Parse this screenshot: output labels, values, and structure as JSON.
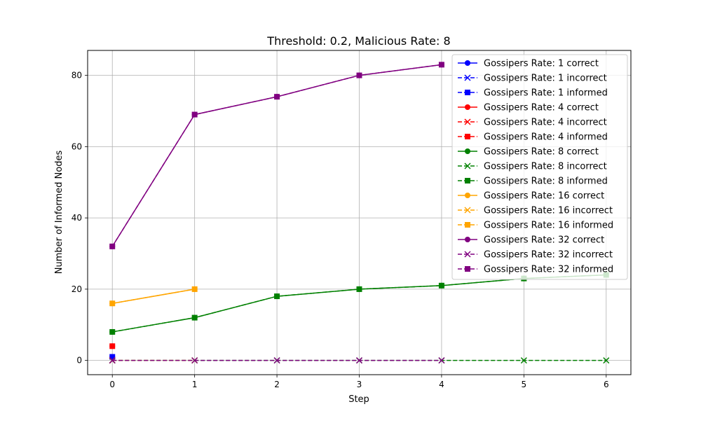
{
  "chart_data": {
    "type": "line",
    "title": "Threshold: 0.2, Malicious Rate: 8",
    "xlabel": "Step",
    "ylabel": "Number of Informed Nodes",
    "xlim": [
      -0.3,
      6.3
    ],
    "ylim": [
      -4,
      87
    ],
    "xticks": [
      0,
      1,
      2,
      3,
      4,
      5,
      6
    ],
    "yticks": [
      0,
      20,
      40,
      60,
      80
    ],
    "grid": true,
    "legend_position": "upper right",
    "series": [
      {
        "name": "Gossipers Rate: 1 correct",
        "color": "#0000ff",
        "linestyle": "solid",
        "marker": "circle",
        "x": [
          0
        ],
        "y": [
          1
        ]
      },
      {
        "name": "Gossipers Rate: 1 incorrect",
        "color": "#0000ff",
        "linestyle": "dashed",
        "marker": "x",
        "x": [
          0
        ],
        "y": [
          0
        ]
      },
      {
        "name": "Gossipers Rate: 1 informed",
        "color": "#0000ff",
        "linestyle": "dashed",
        "marker": "square",
        "x": [
          0
        ],
        "y": [
          1
        ]
      },
      {
        "name": "Gossipers Rate: 4 correct",
        "color": "#ff0000",
        "linestyle": "solid",
        "marker": "circle",
        "x": [
          0
        ],
        "y": [
          4
        ]
      },
      {
        "name": "Gossipers Rate: 4 incorrect",
        "color": "#ff0000",
        "linestyle": "dashed",
        "marker": "x",
        "x": [
          0
        ],
        "y": [
          0
        ]
      },
      {
        "name": "Gossipers Rate: 4 informed",
        "color": "#ff0000",
        "linestyle": "dashed",
        "marker": "square",
        "x": [
          0
        ],
        "y": [
          4
        ]
      },
      {
        "name": "Gossipers Rate: 8 correct",
        "color": "#008000",
        "linestyle": "solid",
        "marker": "circle",
        "x": [
          0,
          1,
          2,
          3,
          4,
          5,
          6
        ],
        "y": [
          8,
          12,
          18,
          20,
          21,
          23,
          24
        ]
      },
      {
        "name": "Gossipers Rate: 8 incorrect",
        "color": "#008000",
        "linestyle": "dashed",
        "marker": "x",
        "x": [
          0,
          1,
          2,
          3,
          4,
          5,
          6
        ],
        "y": [
          0,
          0,
          0,
          0,
          0,
          0,
          0
        ]
      },
      {
        "name": "Gossipers Rate: 8 informed",
        "color": "#008000",
        "linestyle": "dashed",
        "marker": "square",
        "x": [
          0,
          1,
          2,
          3,
          4,
          5,
          6
        ],
        "y": [
          8,
          12,
          18,
          20,
          21,
          23,
          24
        ]
      },
      {
        "name": "Gossipers Rate: 16 correct",
        "color": "#ffa500",
        "linestyle": "solid",
        "marker": "circle",
        "x": [
          0,
          1
        ],
        "y": [
          16,
          20
        ]
      },
      {
        "name": "Gossipers Rate: 16 incorrect",
        "color": "#ffa500",
        "linestyle": "dashed",
        "marker": "x",
        "x": [
          0,
          1
        ],
        "y": [
          0,
          0
        ]
      },
      {
        "name": "Gossipers Rate: 16 informed",
        "color": "#ffa500",
        "linestyle": "dashed",
        "marker": "square",
        "x": [
          0,
          1
        ],
        "y": [
          16,
          20
        ]
      },
      {
        "name": "Gossipers Rate: 32 correct",
        "color": "#800080",
        "linestyle": "solid",
        "marker": "circle",
        "x": [
          0,
          1,
          2,
          3,
          4
        ],
        "y": [
          32,
          69,
          74,
          80,
          83
        ]
      },
      {
        "name": "Gossipers Rate: 32 incorrect",
        "color": "#800080",
        "linestyle": "dashed",
        "marker": "x",
        "x": [
          0,
          1,
          2,
          3,
          4
        ],
        "y": [
          0,
          0,
          0,
          0,
          0
        ]
      },
      {
        "name": "Gossipers Rate: 32 informed",
        "color": "#800080",
        "linestyle": "dashed",
        "marker": "square",
        "x": [
          0,
          1,
          2,
          3,
          4
        ],
        "y": [
          32,
          69,
          74,
          80,
          83
        ]
      }
    ]
  }
}
